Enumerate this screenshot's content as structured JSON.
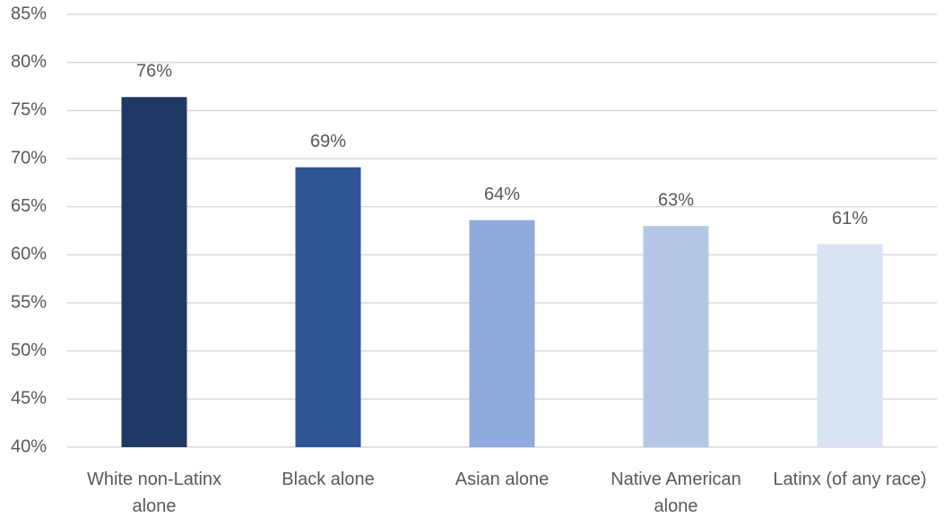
{
  "chart_data": {
    "type": "bar",
    "categories": [
      "White non-Latinx alone",
      "Black alone",
      "Asian alone",
      "Native American alone",
      "Latinx (of any race)"
    ],
    "values": [
      76.4,
      69.1,
      63.6,
      63.0,
      61.1
    ],
    "value_labels": [
      "76%",
      "69%",
      "64%",
      "63%",
      "61%"
    ],
    "colors": [
      "#203864",
      "#2f5597",
      "#8faadc",
      "#b4c7e7",
      "#dae3f3"
    ],
    "ylim": [
      40,
      85
    ],
    "yticks": [
      {
        "value": 40,
        "label": "40%"
      },
      {
        "value": 45,
        "label": "45%"
      },
      {
        "value": 50,
        "label": "50%"
      },
      {
        "value": 55,
        "label": "55%"
      },
      {
        "value": 60,
        "label": "60%"
      },
      {
        "value": 65,
        "label": "65%"
      },
      {
        "value": 70,
        "label": "70%"
      },
      {
        "value": 75,
        "label": "75%"
      },
      {
        "value": 80,
        "label": "80%"
      },
      {
        "value": 85,
        "label": "85%"
      }
    ],
    "grid": true
  }
}
